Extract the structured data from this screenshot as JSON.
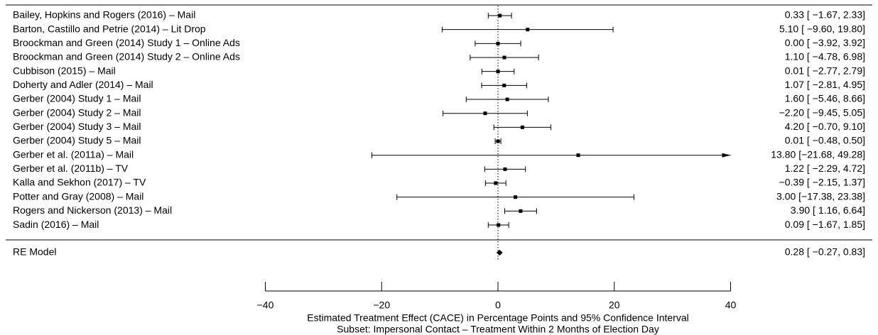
{
  "chart_data": {
    "type": "forest",
    "xlabel": "Estimated Treatment Effect (CACE) in Percentage Points and 95% Confidence Interval",
    "subtitle": "Subset: Impersonal Contact – Treatment Within 2 Months of Election Day",
    "categories": [
      "Bailey, Hopkins and Rogers (2016) – Mail",
      "Barton, Castillo and Petrie (2014) – Lit Drop",
      "Broockman and Green (2014) Study 1 – Online Ads",
      "Broockman and Green (2014) Study 2 – Online Ads",
      "Cubbison (2015) – Mail",
      "Doherty and Adler (2014) – Mail",
      "Gerber (2004) Study 1 – Mail",
      "Gerber (2004) Study 2 – Mail",
      "Gerber (2004) Study 3 – Mail",
      "Gerber (2004) Study 5 – Mail",
      "Gerber et al. (2011a) – Mail",
      "Gerber et al. (2011b) – TV",
      "Kalla and Sekhon (2017) – TV",
      "Potter and Gray (2008) – Mail",
      "Rogers and Nickerson (2013) – Mail",
      "Sadin (2016) – Mail"
    ],
    "values": [
      0.33,
      5.1,
      0.0,
      1.1,
      0.01,
      1.07,
      1.6,
      -2.2,
      4.2,
      0.01,
      13.8,
      1.22,
      -0.39,
      3.0,
      3.9,
      0.09
    ],
    "lower": [
      -1.67,
      -9.6,
      -3.92,
      -4.78,
      -2.77,
      -2.81,
      -5.46,
      -9.45,
      -0.7,
      -0.48,
      -21.68,
      -2.29,
      -2.15,
      -17.38,
      1.16,
      -1.67
    ],
    "upper": [
      2.33,
      19.8,
      3.92,
      6.98,
      2.79,
      4.95,
      8.66,
      5.05,
      9.1,
      0.5,
      49.28,
      4.72,
      1.37,
      23.38,
      6.64,
      1.85
    ],
    "value_labels": [
      "0.33 [ −1.67, 2.33]",
      "5.10 [ −9.60, 19.80]",
      "0.00 [ −3.92, 3.92]",
      "1.10 [ −4.78, 6.98]",
      "0.01 [ −2.77, 2.79]",
      "1.07 [ −2.81, 4.95]",
      "1.60 [ −5.46, 8.66]",
      "−2.20 [ −9.45, 5.05]",
      "4.20 [ −0.70, 9.10]",
      "0.01 [ −0.48, 0.50]",
      "13.80 [−21.68, 49.28]",
      "1.22 [ −2.29, 4.72]",
      "−0.39 [ −2.15, 1.37]",
      "3.00 [−17.38, 23.38]",
      "3.90 [ 1.16, 6.64]",
      "0.09 [ −1.67, 1.85]"
    ],
    "summary": {
      "label": "RE Model",
      "value": 0.28,
      "lower": -0.27,
      "upper": 0.83,
      "value_label": "0.28 [ −0.27, 0.83]"
    },
    "xlim": [
      -40,
      40
    ],
    "xticks": [
      {
        "value": -40,
        "label": "−40"
      },
      {
        "value": -20,
        "label": "−20"
      },
      0,
      20,
      40
    ],
    "color": "#000000"
  }
}
